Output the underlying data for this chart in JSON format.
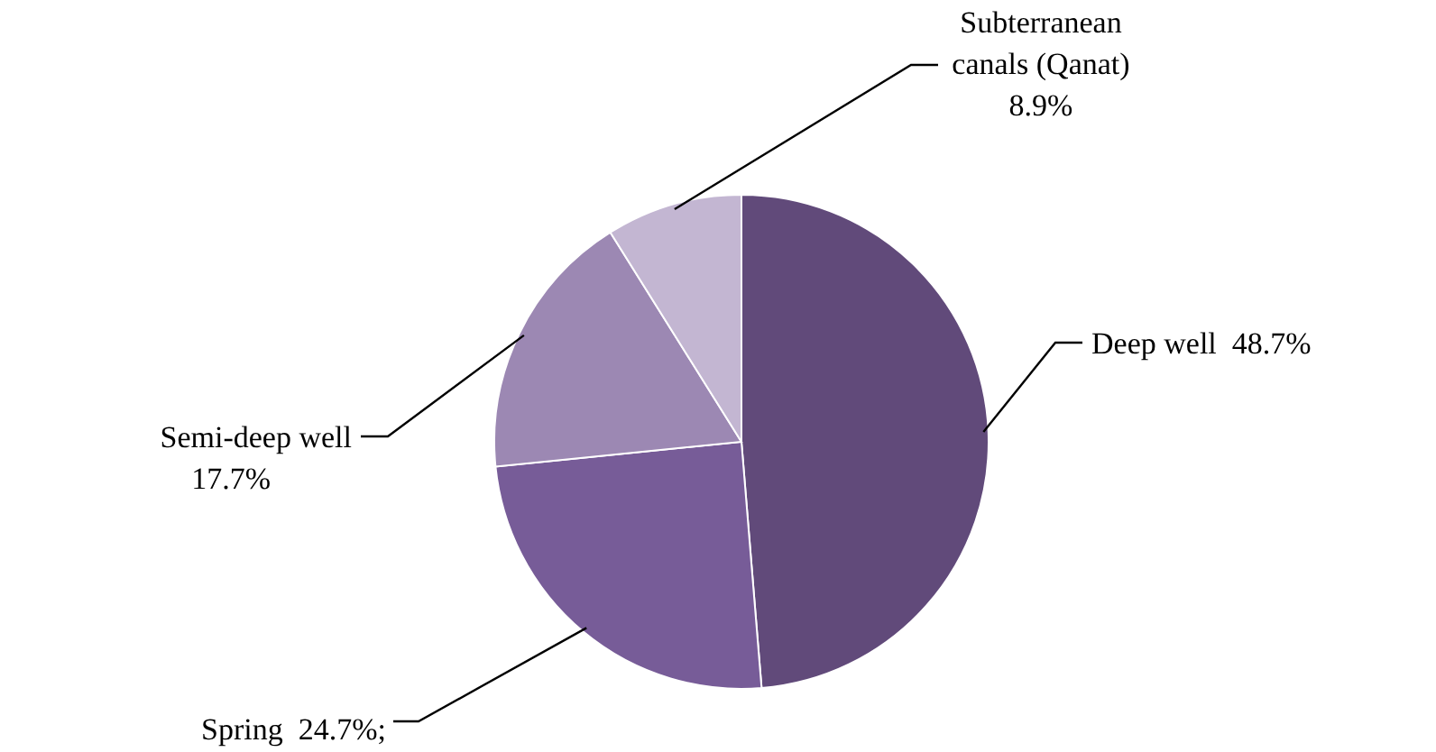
{
  "chart_data": {
    "type": "pie",
    "categories": [
      "Deep well",
      "Spring",
      "Semi-deep well",
      "Subterranean canals (Qanat)"
    ],
    "values": [
      48.7,
      24.7,
      17.7,
      8.9
    ],
    "colors": [
      "#614a7a",
      "#775c98",
      "#9c88b3",
      "#c3b6d2"
    ],
    "value_labels": [
      "48.7%",
      "24.7%;",
      "17.7%",
      "8.9%"
    ]
  }
}
